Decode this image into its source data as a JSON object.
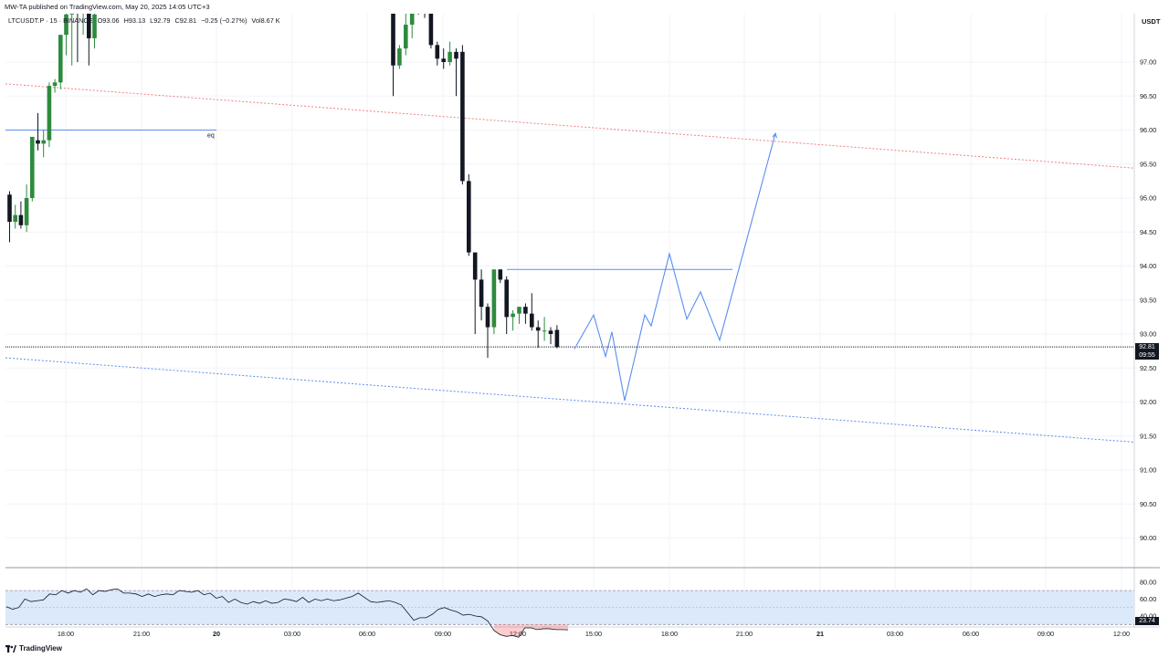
{
  "header": {
    "published": "MW-TA published on TradingView.com, May 20, 2025 14:05 UTC+3"
  },
  "legend": {
    "symbol": "LTCUSDT.P · 15 · BINANCE",
    "open": "O93.06",
    "high": "H93.13",
    "low": "L92.79",
    "close": "C92.81",
    "change": "−0.25 (−0.27%)",
    "volume": "Vol8.67 K"
  },
  "currency_label": "USDT",
  "last_price": {
    "value": "92.81",
    "countdown": "09:55"
  },
  "rsi_last": "23.74",
  "footer": {
    "brand": "TradingView"
  },
  "colors": {
    "up": "#2e8b3e",
    "down": "#131722",
    "projection": "#5b8def",
    "resistance": "#f08080",
    "support": "#5b8def",
    "rsi_band": "#dce9fb"
  },
  "chart_data": [
    {
      "type": "candlestick",
      "y_range": [
        89.65,
        97.85
      ],
      "y_ticks": [
        90.0,
        90.5,
        91.0,
        91.5,
        92.0,
        92.5,
        93.0,
        93.5,
        94.0,
        94.5,
        95.0,
        95.5,
        96.0,
        96.5,
        97.0
      ],
      "y_tick_labels": [
        "90.00",
        "90.50",
        "91.00",
        "91.50",
        "92.00",
        "92.50",
        "93.00",
        "93.50",
        "94.00",
        "94.50",
        "95.00",
        "95.50",
        "96.00",
        "96.50",
        "97.00"
      ],
      "x_tick_labels": [
        "18:00",
        "21:00",
        "20",
        "03:00",
        "06:00",
        "09:00",
        "12:00",
        "15:00",
        "18:00",
        "21:00",
        "21",
        "03:00",
        "06:00",
        "09:00",
        "12:00"
      ],
      "bold_x_labels": [
        "20",
        "21"
      ],
      "candles_left": [
        {
          "o": 95.05,
          "h": 95.1,
          "l": 94.35,
          "c": 94.65
        },
        {
          "o": 94.65,
          "h": 94.9,
          "l": 94.55,
          "c": 94.75
        },
        {
          "o": 94.75,
          "h": 94.95,
          "l": 94.55,
          "c": 94.6
        },
        {
          "o": 94.6,
          "h": 95.2,
          "l": 94.5,
          "c": 95.0
        },
        {
          "o": 95.0,
          "h": 95.9,
          "l": 94.95,
          "c": 95.9
        },
        {
          "o": 95.85,
          "h": 96.25,
          "l": 95.7,
          "c": 95.8
        },
        {
          "o": 95.8,
          "h": 96.0,
          "l": 95.6,
          "c": 95.85
        },
        {
          "o": 95.85,
          "h": 96.7,
          "l": 95.75,
          "c": 96.65
        },
        {
          "o": 96.65,
          "h": 96.75,
          "l": 96.55,
          "c": 96.7
        },
        {
          "o": 96.7,
          "h": 97.4,
          "l": 96.6,
          "c": 97.4
        },
        {
          "o": 97.4,
          "h": 97.9,
          "l": 97.1,
          "c": 97.7
        },
        {
          "o": 97.7,
          "h": 97.95,
          "l": 96.95,
          "c": 97.8
        },
        {
          "o": 97.8,
          "h": 97.95,
          "l": 97.0,
          "c": 97.75
        },
        {
          "o": 97.75,
          "h": 97.9,
          "l": 97.4,
          "c": 97.85
        },
        {
          "o": 97.85,
          "h": 97.95,
          "l": 96.95,
          "c": 97.35
        },
        {
          "o": 97.35,
          "h": 97.75,
          "l": 97.2,
          "c": 97.7
        }
      ],
      "candles_right": [
        {
          "o": 97.85,
          "h": 97.9,
          "l": 96.5,
          "c": 96.95
        },
        {
          "o": 96.95,
          "h": 97.25,
          "l": 96.9,
          "c": 97.2
        },
        {
          "o": 97.2,
          "h": 97.85,
          "l": 97.1,
          "c": 97.55
        },
        {
          "o": 97.55,
          "h": 97.9,
          "l": 97.35,
          "c": 97.85
        },
        {
          "o": 97.85,
          "h": 97.9,
          "l": 97.7,
          "c": 97.8
        },
        {
          "o": 97.8,
          "h": 97.85,
          "l": 97.65,
          "c": 97.75
        },
        {
          "o": 97.75,
          "h": 97.85,
          "l": 97.2,
          "c": 97.25
        },
        {
          "o": 97.25,
          "h": 97.3,
          "l": 96.95,
          "c": 97.05
        },
        {
          "o": 97.05,
          "h": 97.2,
          "l": 96.9,
          "c": 97.0
        },
        {
          "o": 97.0,
          "h": 97.3,
          "l": 96.95,
          "c": 97.15
        },
        {
          "o": 97.15,
          "h": 97.2,
          "l": 96.5,
          "c": 97.05
        },
        {
          "o": 97.15,
          "h": 97.25,
          "l": 95.2,
          "c": 95.25
        },
        {
          "o": 95.25,
          "h": 95.35,
          "l": 94.15,
          "c": 94.2
        },
        {
          "o": 94.2,
          "h": 94.2,
          "l": 93.0,
          "c": 93.8
        },
        {
          "o": 93.8,
          "h": 93.95,
          "l": 93.2,
          "c": 93.4
        },
        {
          "o": 93.4,
          "h": 93.45,
          "l": 92.65,
          "c": 93.1
        },
        {
          "o": 93.1,
          "h": 93.95,
          "l": 93.0,
          "c": 93.95
        },
        {
          "o": 93.95,
          "h": 93.95,
          "l": 93.75,
          "c": 93.8
        },
        {
          "o": 93.8,
          "h": 93.85,
          "l": 93.0,
          "c": 93.25
        },
        {
          "o": 93.25,
          "h": 93.35,
          "l": 93.05,
          "c": 93.3
        },
        {
          "o": 93.3,
          "h": 93.4,
          "l": 93.15,
          "c": 93.4
        },
        {
          "o": 93.4,
          "h": 93.45,
          "l": 93.15,
          "c": 93.3
        },
        {
          "o": 93.3,
          "h": 93.6,
          "l": 93.05,
          "c": 93.1
        },
        {
          "o": 93.1,
          "h": 93.2,
          "l": 92.8,
          "c": 93.05
        },
        {
          "o": 93.05,
          "h": 93.25,
          "l": 92.9,
          "c": 93.05
        },
        {
          "o": 93.05,
          "h": 93.1,
          "l": 92.85,
          "c": 93.0
        },
        {
          "o": 93.06,
          "h": 93.13,
          "l": 92.79,
          "c": 92.81
        }
      ],
      "annotations": {
        "eq_label": "eq",
        "eq_level": 96.0,
        "resistance_line": [
          [
            0,
            96.68
          ],
          [
            1,
            95.44
          ]
        ],
        "support_line": [
          [
            0,
            92.65
          ],
          [
            1,
            91.41
          ]
        ],
        "horizontal_level": 93.95,
        "current_price": 92.81,
        "projection_path": [
          92.78,
          93.28,
          92.67,
          93.03,
          92.02,
          93.28,
          93.12,
          94.18,
          93.22,
          93.62,
          92.91,
          95.95
        ]
      }
    },
    {
      "type": "line",
      "name": "RSI",
      "y_range": [
        14,
        85
      ],
      "y_ticks": [
        40,
        60,
        80
      ],
      "y_tick_labels": [
        "40.00",
        "60.00",
        "80.00"
      ],
      "band": [
        30,
        70
      ],
      "values": [
        51,
        48,
        50,
        60,
        57,
        58,
        59,
        66,
        65,
        70,
        67,
        70,
        68,
        72,
        65,
        70,
        69,
        71,
        72,
        67,
        67,
        66,
        63,
        66,
        63,
        65,
        66,
        65,
        70,
        69,
        68,
        70,
        65,
        67,
        61,
        63,
        56,
        60,
        56,
        54,
        57,
        55,
        58,
        55,
        56,
        60,
        59,
        57,
        62,
        56,
        60,
        58,
        60,
        58,
        59,
        61,
        63,
        67,
        62,
        57,
        56,
        57,
        58,
        56,
        53,
        44,
        35,
        38,
        38,
        42,
        48,
        50,
        47,
        45,
        41,
        42,
        40,
        39,
        34,
        23,
        18,
        16,
        17,
        15,
        26,
        26,
        24,
        25,
        25,
        24,
        24,
        23.74
      ]
    }
  ]
}
